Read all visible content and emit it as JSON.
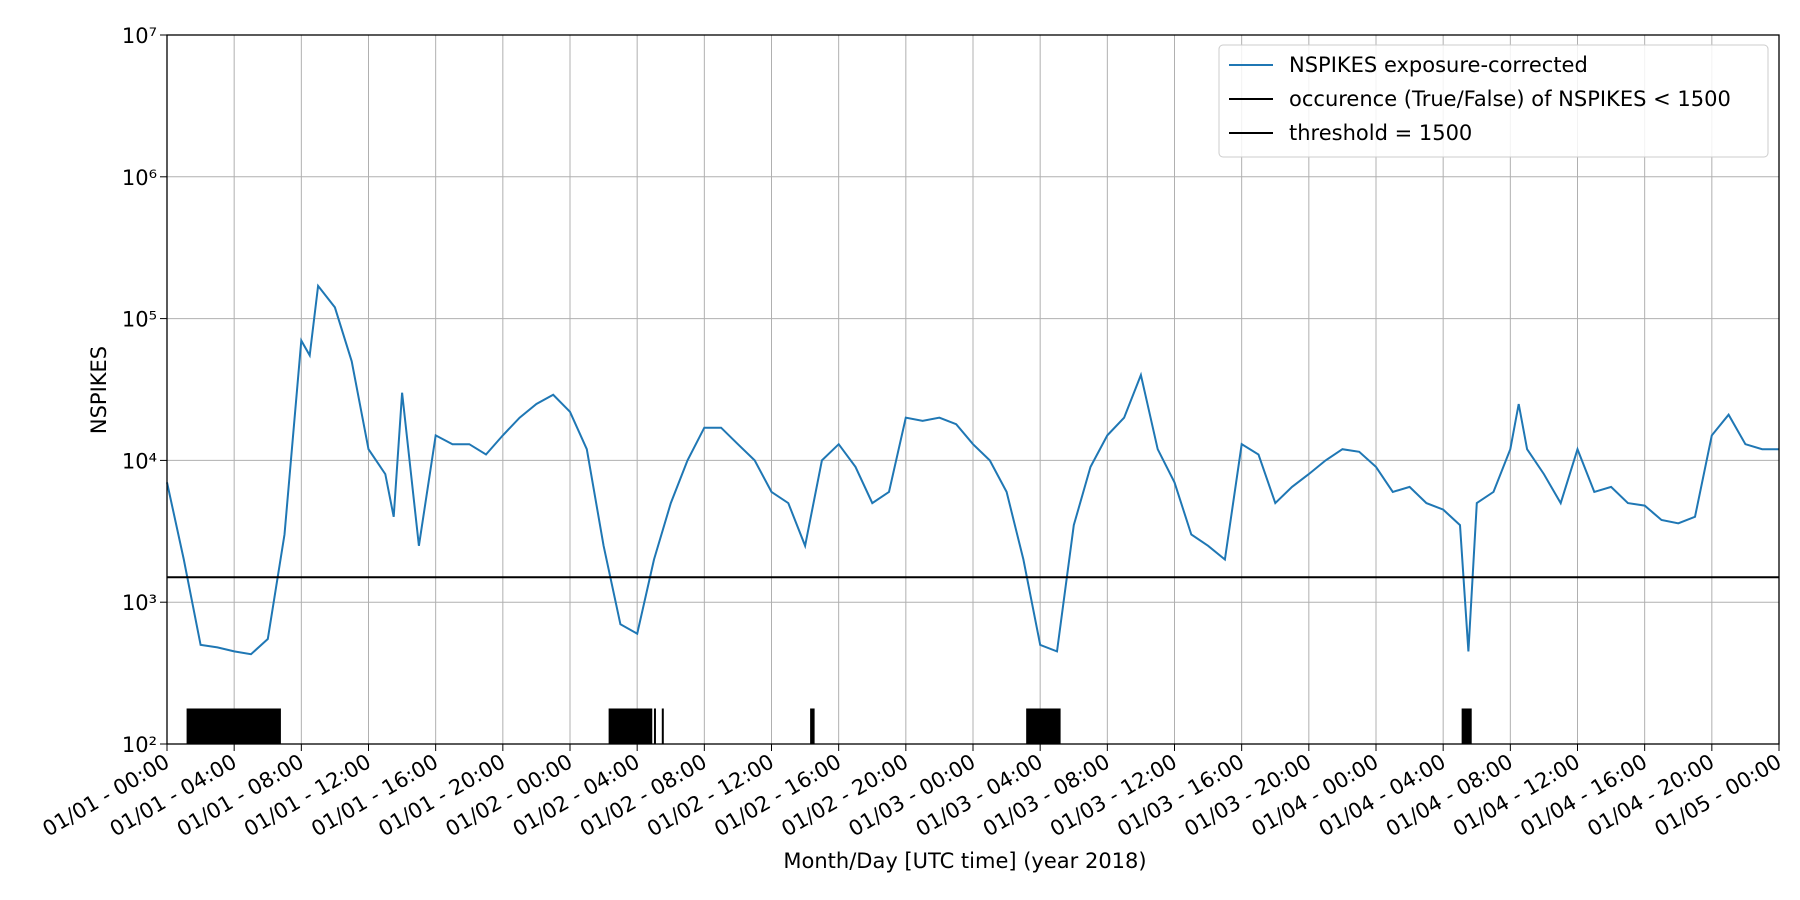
{
  "chart_data": {
    "type": "line",
    "xlabel": "Month/Day  [UTC time] (year 2018)",
    "ylabel": "NSPIKES",
    "log_y": true,
    "grid": true,
    "legend": "upper right",
    "xlim": [
      "01/01 - 00:00",
      "01/05 - 00:00"
    ],
    "xticks": [
      "01/01 - 00:00",
      "01/01 - 04:00",
      "01/01 - 08:00",
      "01/01 - 12:00",
      "01/01 - 16:00",
      "01/01 - 20:00",
      "01/02 - 00:00",
      "01/02 - 04:00",
      "01/02 - 08:00",
      "01/02 - 12:00",
      "01/02 - 16:00",
      "01/02 - 20:00",
      "01/03 - 00:00",
      "01/03 - 04:00",
      "01/03 - 08:00",
      "01/03 - 12:00",
      "01/03 - 16:00",
      "01/03 - 20:00",
      "01/04 - 00:00",
      "01/04 - 04:00",
      "01/04 - 08:00",
      "01/04 - 12:00",
      "01/04 - 16:00",
      "01/04 - 20:00",
      "01/05 - 00:00"
    ],
    "ylim": [
      100,
      10000000
    ],
    "yticks": [
      {
        "value": 100,
        "label": "10²"
      },
      {
        "value": 1000,
        "label": "10³"
      },
      {
        "value": 10000,
        "label": "10⁴"
      },
      {
        "value": 100000,
        "label": "10⁵"
      },
      {
        "value": 1000000,
        "label": "10⁶"
      },
      {
        "value": 10000000,
        "label": "10⁷"
      }
    ],
    "x": [
      "01/01 - 00:00",
      "01/01 - 01:00",
      "01/01 - 02:00",
      "01/01 - 03:00",
      "01/01 - 04:00",
      "01/01 - 05:00",
      "01/01 - 06:00",
      "01/01 - 07:00",
      "01/01 - 08:00",
      "01/01 - 08:30",
      "01/01 - 09:00",
      "01/01 - 10:00",
      "01/01 - 11:00",
      "01/01 - 12:00",
      "01/01 - 13:00",
      "01/01 - 13:30",
      "01/01 - 14:00",
      "01/01 - 15:00",
      "01/01 - 16:00",
      "01/01 - 17:00",
      "01/01 - 18:00",
      "01/01 - 19:00",
      "01/01 - 20:00",
      "01/01 - 21:00",
      "01/01 - 22:00",
      "01/01 - 23:00",
      "01/02 - 00:00",
      "01/02 - 01:00",
      "01/02 - 02:00",
      "01/02 - 03:00",
      "01/02 - 04:00",
      "01/02 - 05:00",
      "01/02 - 06:00",
      "01/02 - 07:00",
      "01/02 - 08:00",
      "01/02 - 09:00",
      "01/02 - 10:00",
      "01/02 - 11:00",
      "01/02 - 12:00",
      "01/02 - 13:00",
      "01/02 - 14:00",
      "01/02 - 15:00",
      "01/02 - 16:00",
      "01/02 - 17:00",
      "01/02 - 18:00",
      "01/02 - 19:00",
      "01/02 - 20:00",
      "01/02 - 21:00",
      "01/02 - 22:00",
      "01/02 - 23:00",
      "01/03 - 00:00",
      "01/03 - 01:00",
      "01/03 - 02:00",
      "01/03 - 03:00",
      "01/03 - 04:00",
      "01/03 - 05:00",
      "01/03 - 06:00",
      "01/03 - 07:00",
      "01/03 - 08:00",
      "01/03 - 09:00",
      "01/03 - 10:00",
      "01/03 - 11:00",
      "01/03 - 12:00",
      "01/03 - 13:00",
      "01/03 - 14:00",
      "01/03 - 15:00",
      "01/03 - 16:00",
      "01/03 - 17:00",
      "01/03 - 18:00",
      "01/03 - 19:00",
      "01/03 - 20:00",
      "01/03 - 21:00",
      "01/03 - 22:00",
      "01/03 - 23:00",
      "01/04 - 00:00",
      "01/04 - 01:00",
      "01/04 - 02:00",
      "01/04 - 03:00",
      "01/04 - 04:00",
      "01/04 - 05:00",
      "01/04 - 05:30",
      "01/04 - 06:00",
      "01/04 - 07:00",
      "01/04 - 08:00",
      "01/04 - 08:30",
      "01/04 - 09:00",
      "01/04 - 10:00",
      "01/04 - 11:00",
      "01/04 - 12:00",
      "01/04 - 13:00",
      "01/04 - 14:00",
      "01/04 - 15:00",
      "01/04 - 16:00",
      "01/04 - 17:00",
      "01/04 - 18:00",
      "01/04 - 19:00",
      "01/04 - 20:00",
      "01/04 - 21:00",
      "01/04 - 22:00",
      "01/04 - 23:00",
      "01/05 - 00:00"
    ],
    "series": [
      {
        "name": "NSPIKES exposure-corrected",
        "color": "#1f77b4",
        "values": [
          7000,
          2000,
          500,
          480,
          450,
          430,
          550,
          3000,
          70000,
          55000,
          170000,
          120000,
          50000,
          12000,
          8000,
          4000,
          30000,
          2500,
          15000,
          13000,
          13000,
          11000,
          15000,
          20000,
          25000,
          29000,
          22000,
          12000,
          2500,
          700,
          600,
          2000,
          5000,
          10000,
          17000,
          17000,
          13000,
          10000,
          6000,
          5000,
          2500,
          10000,
          13000,
          9000,
          5000,
          6000,
          20000,
          19000,
          20000,
          18000,
          13000,
          10000,
          6000,
          2000,
          500,
          450,
          3500,
          9000,
          15000,
          20000,
          40000,
          12000,
          7000,
          3000,
          2500,
          2000,
          13000,
          11000,
          5000,
          6500,
          8000,
          10000,
          12000,
          11500,
          9000,
          6000,
          6500,
          5000,
          4500,
          3500,
          450,
          5000,
          6000,
          12000,
          25000,
          12000,
          8000,
          5000,
          12000,
          6000,
          6500,
          5000,
          4800,
          3800,
          3600,
          4000,
          15000,
          21000,
          13000,
          12000,
          12000
        ]
      },
      {
        "name": "occurence (True/False) of NSPIKES < 1500",
        "color": "#000000",
        "level": 178,
        "intervals": [
          [
            "01/01 - 01:10",
            "01/01 - 06:47"
          ],
          [
            "01/02 - 02:18",
            "01/02 - 04:54"
          ],
          [
            "01/02 - 05:00",
            "01/02 - 05:05"
          ],
          [
            "01/02 - 05:28",
            "01/02 - 05:32"
          ],
          [
            "01/02 - 14:18",
            "01/02 - 14:34"
          ],
          [
            "01/03 - 03:10",
            "01/03 - 05:13"
          ],
          [
            "01/04 - 05:06",
            "01/04 - 05:42"
          ]
        ]
      },
      {
        "name": "threshold = 1500",
        "color": "#000000",
        "value": 1500
      }
    ]
  }
}
